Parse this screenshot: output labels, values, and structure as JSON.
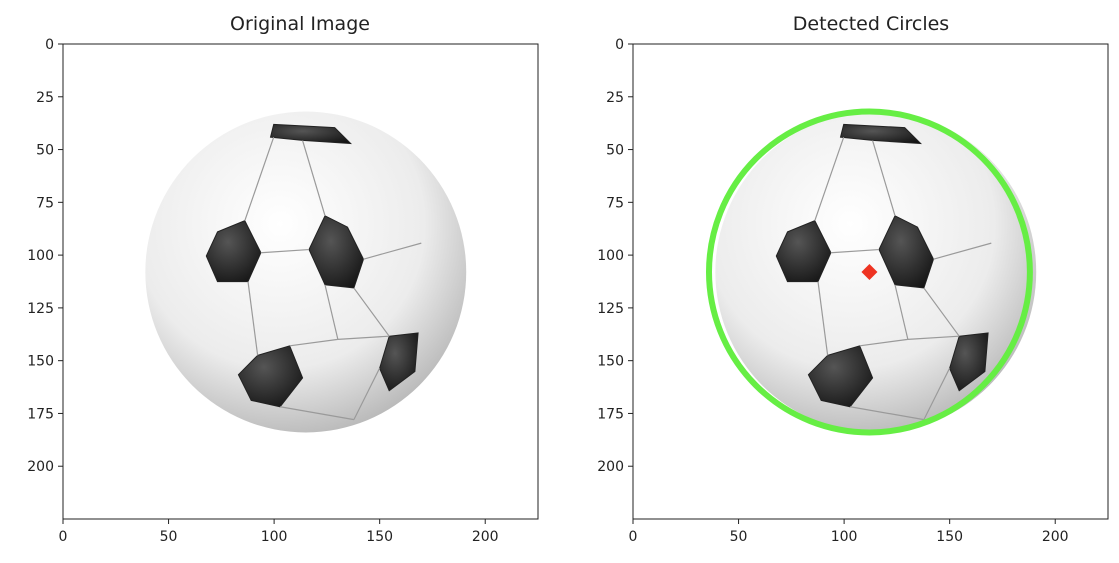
{
  "figure": {
    "panels": [
      {
        "id": "original",
        "title": "Original Image",
        "x_ticks": [
          "0",
          "50",
          "100",
          "150",
          "200"
        ],
        "y_ticks": [
          "0",
          "25",
          "50",
          "75",
          "100",
          "125",
          "150",
          "175",
          "200"
        ]
      },
      {
        "id": "detected",
        "title": "Detected Circles",
        "x_ticks": [
          "0",
          "50",
          "100",
          "150",
          "200"
        ],
        "y_ticks": [
          "0",
          "25",
          "50",
          "75",
          "100",
          "125",
          "150",
          "175",
          "200"
        ]
      }
    ],
    "image_extent": {
      "x": [
        0,
        225
      ],
      "y": [
        225,
        0
      ]
    },
    "detected_circle": {
      "center_x": 112,
      "center_y": 108,
      "radius": 76,
      "color": "#66ee44"
    },
    "center_marker": {
      "color": "#ee3322",
      "shape": "diamond"
    },
    "ball": {
      "center_x": 115,
      "center_y": 108,
      "radius": 76
    }
  }
}
